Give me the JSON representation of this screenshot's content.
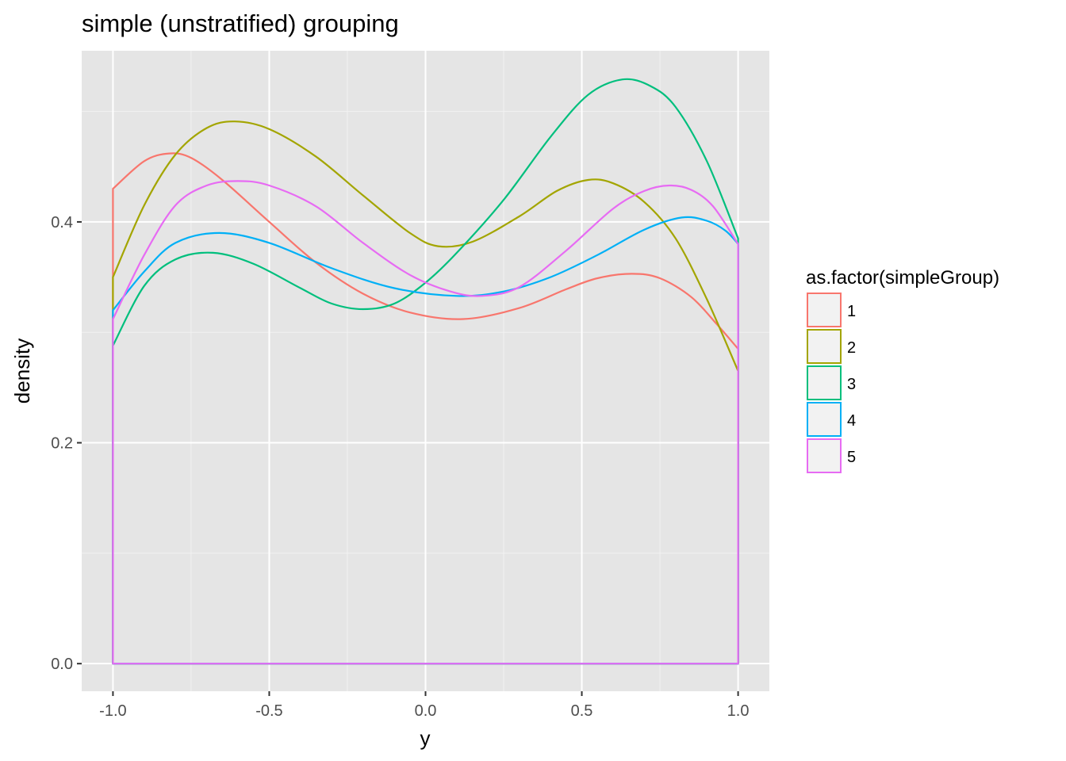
{
  "chart_data": {
    "type": "line",
    "title": "simple (unstratified) grouping",
    "xlabel": "y",
    "ylabel": "density",
    "xlim": [
      -1.1,
      1.1
    ],
    "ylim": [
      -0.025,
      0.555
    ],
    "x_ticks": [
      -1.0,
      -0.5,
      0.0,
      0.5,
      1.0
    ],
    "x_tick_labels": [
      "-1.0",
      "-0.5",
      "0.0",
      "0.5",
      "1.0"
    ],
    "y_ticks": [
      0.0,
      0.2,
      0.4
    ],
    "y_tick_labels": [
      "0.0",
      "0.2",
      "0.4"
    ],
    "y_minor_ticks": [
      0.1,
      0.3,
      0.5
    ],
    "x_minor_ticks": [
      -0.75,
      -0.25,
      0.25,
      0.75
    ],
    "grid": true,
    "background": "#e5e5e5",
    "legend": {
      "title": "as.factor(simpleGroup)",
      "position": "right"
    },
    "closed_polygon": true,
    "series": [
      {
        "name": "1",
        "color": "#f8766d",
        "points": [
          [
            -1.0,
            0.43
          ],
          [
            -0.9,
            0.455
          ],
          [
            -0.82,
            0.462
          ],
          [
            -0.75,
            0.458
          ],
          [
            -0.65,
            0.438
          ],
          [
            -0.5,
            0.4
          ],
          [
            -0.35,
            0.363
          ],
          [
            -0.2,
            0.335
          ],
          [
            -0.05,
            0.318
          ],
          [
            0.12,
            0.312
          ],
          [
            0.3,
            0.322
          ],
          [
            0.45,
            0.339
          ],
          [
            0.55,
            0.349
          ],
          [
            0.66,
            0.353
          ],
          [
            0.75,
            0.349
          ],
          [
            0.85,
            0.332
          ],
          [
            0.93,
            0.308
          ],
          [
            1.0,
            0.285
          ]
        ]
      },
      {
        "name": "2",
        "color": "#a3a500",
        "points": [
          [
            -1.0,
            0.35
          ],
          [
            -0.9,
            0.415
          ],
          [
            -0.8,
            0.461
          ],
          [
            -0.7,
            0.485
          ],
          [
            -0.61,
            0.491
          ],
          [
            -0.5,
            0.484
          ],
          [
            -0.35,
            0.459
          ],
          [
            -0.2,
            0.424
          ],
          [
            -0.05,
            0.39
          ],
          [
            0.04,
            0.378
          ],
          [
            0.15,
            0.382
          ],
          [
            0.3,
            0.405
          ],
          [
            0.42,
            0.428
          ],
          [
            0.52,
            0.438
          ],
          [
            0.6,
            0.435
          ],
          [
            0.7,
            0.418
          ],
          [
            0.8,
            0.385
          ],
          [
            0.9,
            0.33
          ],
          [
            1.0,
            0.265
          ]
        ]
      },
      {
        "name": "3",
        "color": "#00bf7d",
        "points": [
          [
            -1.0,
            0.288
          ],
          [
            -0.9,
            0.342
          ],
          [
            -0.8,
            0.366
          ],
          [
            -0.68,
            0.372
          ],
          [
            -0.55,
            0.362
          ],
          [
            -0.4,
            0.34
          ],
          [
            -0.3,
            0.326
          ],
          [
            -0.2,
            0.321
          ],
          [
            -0.1,
            0.326
          ],
          [
            0.0,
            0.345
          ],
          [
            0.1,
            0.372
          ],
          [
            0.25,
            0.42
          ],
          [
            0.4,
            0.477
          ],
          [
            0.52,
            0.515
          ],
          [
            0.63,
            0.529
          ],
          [
            0.72,
            0.523
          ],
          [
            0.8,
            0.504
          ],
          [
            0.9,
            0.455
          ],
          [
            1.0,
            0.385
          ]
        ]
      },
      {
        "name": "4",
        "color": "#00b0f6",
        "points": [
          [
            -1.0,
            0.32
          ],
          [
            -0.9,
            0.355
          ],
          [
            -0.8,
            0.381
          ],
          [
            -0.66,
            0.39
          ],
          [
            -0.5,
            0.381
          ],
          [
            -0.3,
            0.358
          ],
          [
            -0.1,
            0.34
          ],
          [
            0.1,
            0.333
          ],
          [
            0.25,
            0.337
          ],
          [
            0.4,
            0.35
          ],
          [
            0.55,
            0.37
          ],
          [
            0.7,
            0.393
          ],
          [
            0.82,
            0.404
          ],
          [
            0.9,
            0.401
          ],
          [
            0.96,
            0.392
          ],
          [
            1.0,
            0.38
          ]
        ]
      },
      {
        "name": "5",
        "color": "#e76bf3",
        "points": [
          [
            -1.0,
            0.312
          ],
          [
            -0.9,
            0.37
          ],
          [
            -0.8,
            0.415
          ],
          [
            -0.7,
            0.433
          ],
          [
            -0.6,
            0.437
          ],
          [
            -0.5,
            0.433
          ],
          [
            -0.35,
            0.414
          ],
          [
            -0.2,
            0.381
          ],
          [
            -0.05,
            0.352
          ],
          [
            0.08,
            0.337
          ],
          [
            0.18,
            0.333
          ],
          [
            0.3,
            0.341
          ],
          [
            0.45,
            0.374
          ],
          [
            0.6,
            0.412
          ],
          [
            0.7,
            0.428
          ],
          [
            0.78,
            0.433
          ],
          [
            0.85,
            0.429
          ],
          [
            0.92,
            0.414
          ],
          [
            1.0,
            0.38
          ]
        ]
      }
    ]
  }
}
